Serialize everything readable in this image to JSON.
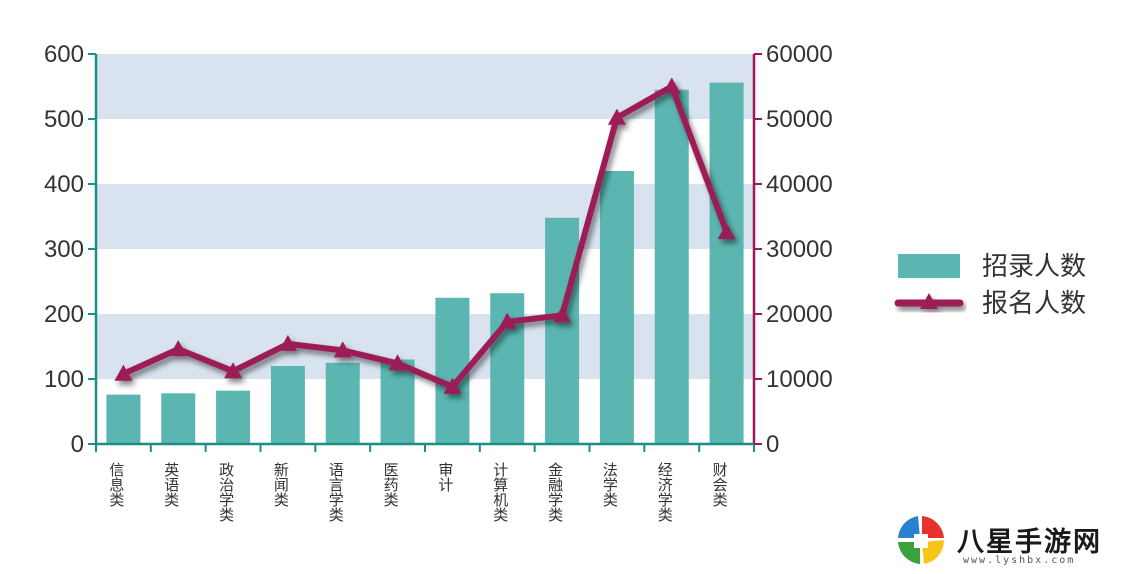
{
  "chart_data": {
    "type": "bar",
    "categories": [
      "信息类",
      "英语类",
      "政治学类",
      "新闻类",
      "语言学类",
      "医药类",
      "审计",
      "计算机类",
      "金融学类",
      "法学类",
      "经济学类",
      "财会类"
    ],
    "series": [
      {
        "name": "招录人数",
        "type": "bar",
        "axis": "left",
        "color": "#5bb5b1",
        "values": [
          76,
          78,
          82,
          120,
          125,
          130,
          225,
          232,
          348,
          420,
          545,
          556
        ]
      },
      {
        "name": "报名人数",
        "type": "line",
        "axis": "right",
        "color": "#9c1a57",
        "values": [
          10800,
          14600,
          11200,
          15400,
          14400,
          12400,
          8800,
          18800,
          19800,
          50200,
          55000,
          32600
        ]
      }
    ],
    "ylim_left": [
      0,
      600
    ],
    "yticks_left": [
      "0",
      "100",
      "200",
      "300",
      "400",
      "500",
      "600"
    ],
    "ylim_right": [
      0,
      60000
    ],
    "yticks_right": [
      "0",
      "10000",
      "20000",
      "30000",
      "40000",
      "50000",
      "60000"
    ],
    "left_axis_color": "#1a8f8a",
    "right_axis_color": "#9c1a57",
    "band_color": "#d9e3ef",
    "grid": "alternating horizontal bands",
    "legend": "right",
    "title": "",
    "xlabel": "",
    "ylabel": ""
  },
  "watermark": {
    "text": "八星手游网",
    "url": "www.lyshbx.com"
  }
}
